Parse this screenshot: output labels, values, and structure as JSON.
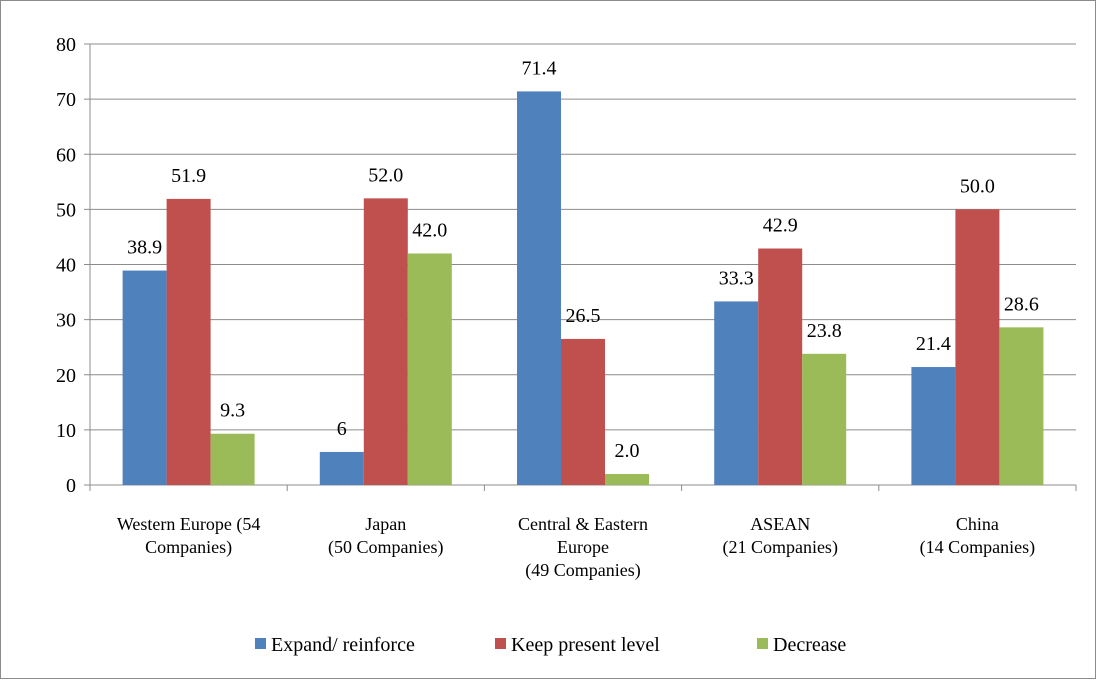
{
  "chart_data": {
    "type": "bar",
    "title": "",
    "xlabel": "",
    "ylabel": "",
    "ylim": [
      0,
      80
    ],
    "yticks": [
      0,
      10,
      20,
      30,
      40,
      50,
      60,
      70,
      80
    ],
    "grid": true,
    "legend_position": "bottom",
    "categories": [
      [
        "Western Europe (54",
        "Companies)"
      ],
      [
        "Japan",
        "(50 Companies)"
      ],
      [
        "Central & Eastern",
        "Europe",
        "(49 Companies)"
      ],
      [
        "ASEAN",
        "(21 Companies)"
      ],
      [
        "China",
        "(14 Companies)"
      ]
    ],
    "series": [
      {
        "name": "Expand/ reinforce",
        "color": "#4f81bd",
        "values": [
          38.9,
          6,
          71.4,
          33.3,
          21.4
        ],
        "labels": [
          "38.9",
          "6",
          "71.4",
          "33.3",
          "21.4"
        ]
      },
      {
        "name": "Keep present level",
        "color": "#c0504d",
        "values": [
          51.9,
          52.0,
          26.5,
          42.9,
          50.0
        ],
        "labels": [
          "51.9",
          "52.0",
          "26.5",
          "42.9",
          "50.0"
        ]
      },
      {
        "name": "Decrease",
        "color": "#9bbb59",
        "values": [
          9.3,
          42.0,
          2.0,
          23.8,
          28.6
        ],
        "labels": [
          "9.3",
          "42.0",
          "2.0",
          "23.8",
          "28.6"
        ]
      }
    ]
  }
}
